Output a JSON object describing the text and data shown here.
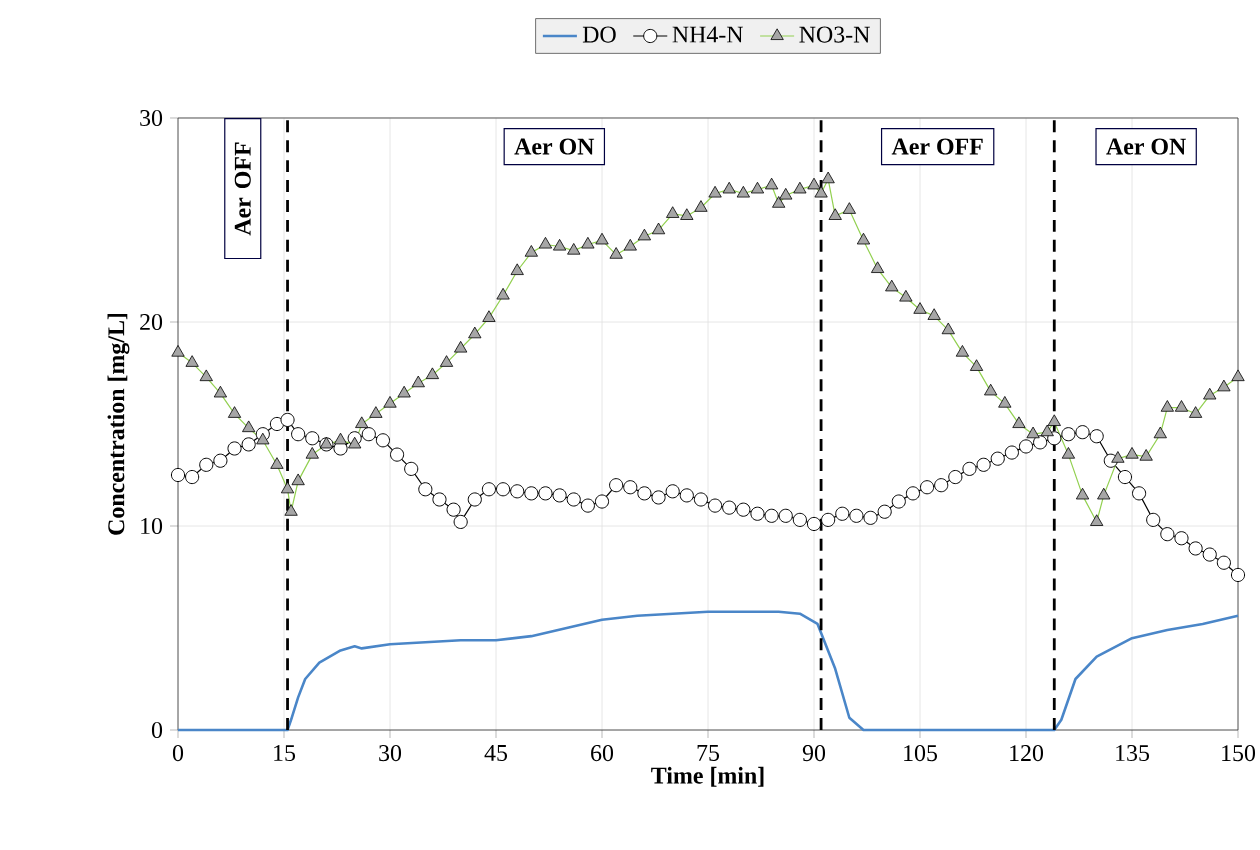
{
  "chart_data": {
    "type": "line",
    "xlabel": "Time [min]",
    "ylabel": "Concentration [mg/L]",
    "xlim": [
      0,
      150
    ],
    "ylim": [
      0,
      30
    ],
    "xticks": [
      0,
      15,
      30,
      45,
      60,
      75,
      90,
      105,
      120,
      135,
      150
    ],
    "yticks": [
      0,
      10,
      20,
      30
    ],
    "grid": true,
    "legend": "top",
    "series": [
      {
        "name": "DO",
        "color": "#4a86c8",
        "marker": "none",
        "line_style": "solid",
        "x": [
          0,
          5,
          10,
          15.5,
          16,
          17,
          18,
          20,
          23,
          25,
          26,
          30,
          35,
          40,
          45,
          50,
          55,
          60,
          65,
          70,
          75,
          80,
          85,
          88,
          90.5,
          93,
          95,
          97,
          100,
          110,
          124,
          125,
          127,
          130,
          135,
          140,
          145,
          150
        ],
        "values": [
          0,
          0,
          0,
          0,
          0.5,
          1.6,
          2.5,
          3.3,
          3.9,
          4.1,
          4.0,
          4.2,
          4.3,
          4.4,
          4.4,
          4.6,
          5.0,
          5.4,
          5.6,
          5.7,
          5.8,
          5.8,
          5.8,
          5.7,
          5.2,
          3.0,
          0.6,
          0,
          0,
          0,
          0,
          0.5,
          2.5,
          3.6,
          4.5,
          4.9,
          5.2,
          5.6
        ]
      },
      {
        "name": "NH4-N",
        "color": "#000000",
        "marker": "circle",
        "x": [
          0,
          2,
          4,
          6,
          8,
          10,
          12,
          14,
          15.5,
          17,
          19,
          21,
          23,
          25,
          27,
          29,
          31,
          33,
          35,
          37,
          39,
          40,
          42,
          44,
          46,
          48,
          50,
          52,
          54,
          56,
          58,
          60,
          62,
          64,
          66,
          68,
          70,
          72,
          74,
          76,
          78,
          80,
          82,
          84,
          86,
          88,
          90,
          92,
          94,
          96,
          98,
          100,
          102,
          104,
          106,
          108,
          110,
          112,
          114,
          116,
          118,
          120,
          122,
          124,
          126,
          128,
          130,
          132,
          134,
          136,
          138,
          140,
          142,
          144,
          146,
          148,
          150
        ],
        "values": [
          12.5,
          12.4,
          13.0,
          13.2,
          13.8,
          14.0,
          14.5,
          15.0,
          15.2,
          14.5,
          14.3,
          14.0,
          13.8,
          14.3,
          14.5,
          14.2,
          13.5,
          12.8,
          11.8,
          11.3,
          10.8,
          10.2,
          11.3,
          11.8,
          11.8,
          11.7,
          11.6,
          11.6,
          11.5,
          11.3,
          11.0,
          11.2,
          12.0,
          11.9,
          11.6,
          11.4,
          11.7,
          11.5,
          11.3,
          11.0,
          10.9,
          10.8,
          10.6,
          10.5,
          10.5,
          10.3,
          10.1,
          10.3,
          10.6,
          10.5,
          10.4,
          10.7,
          11.2,
          11.6,
          11.9,
          12.0,
          12.4,
          12.8,
          13.0,
          13.3,
          13.6,
          13.9,
          14.1,
          14.3,
          14.5,
          14.6,
          14.4,
          13.2,
          12.4,
          11.6,
          10.3,
          9.6,
          9.4,
          8.9,
          8.6,
          8.2,
          7.6
        ]
      },
      {
        "name": "NO3-N",
        "color": "#92d050",
        "marker": "triangle",
        "x": [
          0,
          2,
          4,
          6,
          8,
          10,
          12,
          14,
          15.5,
          16,
          17,
          19,
          21,
          23,
          25,
          26,
          28,
          30,
          32,
          34,
          36,
          38,
          40,
          42,
          44,
          46,
          48,
          50,
          52,
          54,
          56,
          58,
          60,
          62,
          64,
          66,
          68,
          70,
          72,
          74,
          76,
          78,
          80,
          82,
          84,
          85,
          86,
          88,
          90,
          91,
          92,
          93,
          95,
          97,
          99,
          101,
          103,
          105,
          107,
          109,
          111,
          113,
          115,
          117,
          119,
          121,
          123,
          124,
          126,
          128,
          130,
          131,
          133,
          135,
          137,
          139,
          140,
          142,
          144,
          146,
          148,
          150
        ],
        "values": [
          18.5,
          18.0,
          17.3,
          16.5,
          15.5,
          14.8,
          14.2,
          13.0,
          11.8,
          10.7,
          12.2,
          13.5,
          14.0,
          14.2,
          14.0,
          15.0,
          15.5,
          16.0,
          16.5,
          17.0,
          17.4,
          18.0,
          18.7,
          19.4,
          20.2,
          21.3,
          22.5,
          23.4,
          23.8,
          23.7,
          23.5,
          23.8,
          24.0,
          23.3,
          23.7,
          24.2,
          24.5,
          25.3,
          25.2,
          25.6,
          26.3,
          26.5,
          26.3,
          26.5,
          26.7,
          25.8,
          26.2,
          26.5,
          26.7,
          26.3,
          27.0,
          25.2,
          25.5,
          24.0,
          22.6,
          21.7,
          21.2,
          20.6,
          20.3,
          19.6,
          18.5,
          17.8,
          16.6,
          16.0,
          15.0,
          14.5,
          14.6,
          15.1,
          13.5,
          11.5,
          10.2,
          11.5,
          13.3,
          13.5,
          13.4,
          14.5,
          15.8,
          15.8,
          15.5,
          16.4,
          16.8,
          17.3
        ]
      }
    ],
    "ref_lines": [
      {
        "axis": "x",
        "value": 15.5,
        "color": "#000000",
        "line_style": "dashed"
      },
      {
        "axis": "x",
        "value": 91,
        "color": "#000000",
        "line_style": "dashed"
      },
      {
        "axis": "x",
        "value": 124,
        "color": "#000000",
        "line_style": "dashed"
      }
    ],
    "annotations": [
      "Aer OFF",
      "Aer ON",
      "Aer OFF",
      "Aer ON"
    ]
  }
}
